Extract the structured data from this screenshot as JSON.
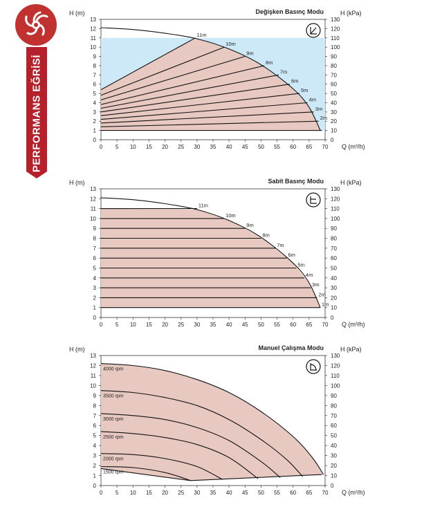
{
  "ribbon_label": "PERFORMANS EĞRİSİ",
  "colors": {
    "brand_red": "#b5202b",
    "fill_pink": "#e7c9c1",
    "fill_blue": "#cde8f7",
    "curve": "#111111"
  },
  "chart_data": [
    {
      "type": "line",
      "title": "Değişken Basınç Modu",
      "mode_icon": "variable-pressure-icon",
      "xlabel": "Q (m³/h)",
      "ylabel_left": "H (m)",
      "ylabel_right": "H (kPa)",
      "xlim": [
        0,
        70
      ],
      "ylim": [
        0,
        13
      ],
      "ylim_right": [
        0,
        130
      ],
      "x_ticks": [
        "0",
        "5",
        "10",
        "15",
        "20",
        "25",
        "30",
        "35",
        "40",
        "45",
        "50",
        "55",
        "60",
        "65",
        "70"
      ],
      "y_ticks": [
        "0",
        "1",
        "2",
        "3",
        "4",
        "5",
        "6",
        "7",
        "8",
        "9",
        "10",
        "11",
        "12",
        "13"
      ],
      "y_right_ticks": [
        "0",
        "10",
        "20",
        "30",
        "40",
        "50",
        "60",
        "70",
        "80",
        "90",
        "100",
        "110",
        "120",
        "130"
      ],
      "max_curve": {
        "x": [
          0,
          10,
          20,
          30,
          40,
          50,
          60,
          65,
          68.5
        ],
        "y": [
          12.1,
          11.9,
          11.5,
          10.9,
          9.8,
          8.1,
          5.5,
          3.5,
          1.0
        ]
      },
      "region_h_max": 11,
      "series": [
        {
          "name": "11m",
          "x": [
            0,
            29.5
          ],
          "y": [
            5.4,
            11.0
          ]
        },
        {
          "name": "10m",
          "x": [
            0,
            38.5
          ],
          "y": [
            4.8,
            10.0
          ]
        },
        {
          "name": "9m",
          "x": [
            0,
            45
          ],
          "y": [
            4.3,
            9.0
          ]
        },
        {
          "name": "8m",
          "x": [
            0,
            51
          ],
          "y": [
            3.8,
            8.0
          ]
        },
        {
          "name": "7m",
          "x": [
            0,
            55.5
          ],
          "y": [
            3.4,
            7.0
          ]
        },
        {
          "name": "6m",
          "x": [
            0,
            59
          ],
          "y": [
            3.0,
            6.0
          ]
        },
        {
          "name": "5m",
          "x": [
            0,
            62
          ],
          "y": [
            2.6,
            5.0
          ]
        },
        {
          "name": "4m",
          "x": [
            0,
            64.5
          ],
          "y": [
            2.2,
            4.0
          ]
        },
        {
          "name": "3m",
          "x": [
            0,
            66.5
          ],
          "y": [
            1.8,
            3.0
          ]
        },
        {
          "name": "2m",
          "x": [
            0,
            68
          ],
          "y": [
            1.4,
            2.0
          ]
        },
        {
          "name": "",
          "x": [
            0,
            69
          ],
          "y": [
            1.0,
            1.0
          ]
        }
      ]
    },
    {
      "type": "line",
      "title": "Sabit Basınç Modu",
      "mode_icon": "constant-pressure-icon",
      "xlabel": "Q (m³/h)",
      "ylabel_left": "H (m)",
      "ylabel_right": "H (kPa)",
      "xlim": [
        0,
        70
      ],
      "ylim": [
        0,
        13
      ],
      "ylim_right": [
        0,
        130
      ],
      "x_ticks": [
        "0",
        "5",
        "10",
        "15",
        "20",
        "25",
        "30",
        "35",
        "40",
        "45",
        "50",
        "55",
        "60",
        "65",
        "70"
      ],
      "y_ticks": [
        "0",
        "1",
        "2",
        "3",
        "4",
        "5",
        "6",
        "7",
        "8",
        "9",
        "10",
        "11",
        "12",
        "13"
      ],
      "y_right_ticks": [
        "0",
        "10",
        "20",
        "30",
        "40",
        "50",
        "60",
        "70",
        "80",
        "90",
        "100",
        "110",
        "120",
        "130"
      ],
      "max_curve": {
        "x": [
          0,
          10,
          20,
          30,
          40,
          50,
          60,
          65,
          68.5
        ],
        "y": [
          12.1,
          11.9,
          11.5,
          10.9,
          9.8,
          8.1,
          5.5,
          3.5,
          1.0
        ]
      },
      "series": [
        {
          "name": "11m",
          "x": [
            0,
            30
          ],
          "y": [
            11,
            11
          ]
        },
        {
          "name": "10m",
          "x": [
            0,
            38.5
          ],
          "y": [
            10,
            10
          ]
        },
        {
          "name": "9m",
          "x": [
            0,
            45
          ],
          "y": [
            9,
            9
          ]
        },
        {
          "name": "8m",
          "x": [
            0,
            50
          ],
          "y": [
            8,
            8
          ]
        },
        {
          "name": "7m",
          "x": [
            0,
            54.5
          ],
          "y": [
            7,
            7
          ]
        },
        {
          "name": "6m",
          "x": [
            0,
            58
          ],
          "y": [
            6,
            6
          ]
        },
        {
          "name": "5m",
          "x": [
            0,
            61
          ],
          "y": [
            5,
            5
          ]
        },
        {
          "name": "4m",
          "x": [
            0,
            63.5
          ],
          "y": [
            4,
            4
          ]
        },
        {
          "name": "3m",
          "x": [
            0,
            65.5
          ],
          "y": [
            3,
            3
          ]
        },
        {
          "name": "2m",
          "x": [
            0,
            67.5
          ],
          "y": [
            2,
            2
          ]
        },
        {
          "name": "1m",
          "x": [
            0,
            68.5
          ],
          "y": [
            1,
            1
          ]
        }
      ]
    },
    {
      "type": "line",
      "title": "Manuel Çalışma Modu",
      "mode_icon": "manual-mode-icon",
      "xlabel": "Q (m³/h)",
      "ylabel_left": "H (m)",
      "ylabel_right": "H (kPa)",
      "xlim": [
        0,
        70
      ],
      "ylim": [
        0,
        13
      ],
      "ylim_right": [
        0,
        130
      ],
      "x_ticks": [
        "0",
        "5",
        "10",
        "15",
        "20",
        "25",
        "30",
        "35",
        "40",
        "45",
        "50",
        "55",
        "60",
        "65",
        "70"
      ],
      "y_ticks": [
        "0",
        "1",
        "2",
        "3",
        "4",
        "5",
        "6",
        "7",
        "8",
        "9",
        "10",
        "11",
        "12",
        "13"
      ],
      "y_right_ticks": [
        "0",
        "10",
        "20",
        "30",
        "40",
        "50",
        "60",
        "70",
        "80",
        "90",
        "100",
        "110",
        "120",
        "130"
      ],
      "min_line": {
        "x": [
          0,
          28,
          69
        ],
        "y": [
          1.7,
          0.5,
          1.1
        ]
      },
      "series": [
        {
          "name": "4000 rpm",
          "x": [
            0,
            10,
            20,
            30,
            40,
            50,
            60,
            66,
            69.5
          ],
          "y": [
            12.2,
            12.0,
            11.5,
            10.6,
            9.3,
            7.4,
            4.9,
            2.8,
            1.1
          ]
        },
        {
          "name": "3500 rpm",
          "x": [
            0,
            10,
            20,
            30,
            40,
            50,
            58,
            63
          ],
          "y": [
            9.5,
            9.3,
            8.8,
            8.0,
            6.6,
            4.6,
            2.6,
            0.9
          ]
        },
        {
          "name": "3000 rpm",
          "x": [
            0,
            10,
            20,
            30,
            40,
            50,
            56
          ],
          "y": [
            7.2,
            7.0,
            6.6,
            5.8,
            4.5,
            2.4,
            0.8
          ]
        },
        {
          "name": "2500 rpm",
          "x": [
            0,
            10,
            20,
            30,
            40,
            49
          ],
          "y": [
            5.4,
            5.2,
            4.8,
            4.1,
            2.8,
            0.7
          ]
        },
        {
          "name": "2000 rpm",
          "x": [
            0,
            10,
            20,
            30,
            38
          ],
          "y": [
            3.2,
            3.1,
            2.7,
            1.9,
            0.6
          ]
        },
        {
          "name": "1500 rpm",
          "x": [
            0,
            10,
            20,
            28
          ],
          "y": [
            1.9,
            1.8,
            1.3,
            0.5
          ]
        }
      ]
    }
  ]
}
